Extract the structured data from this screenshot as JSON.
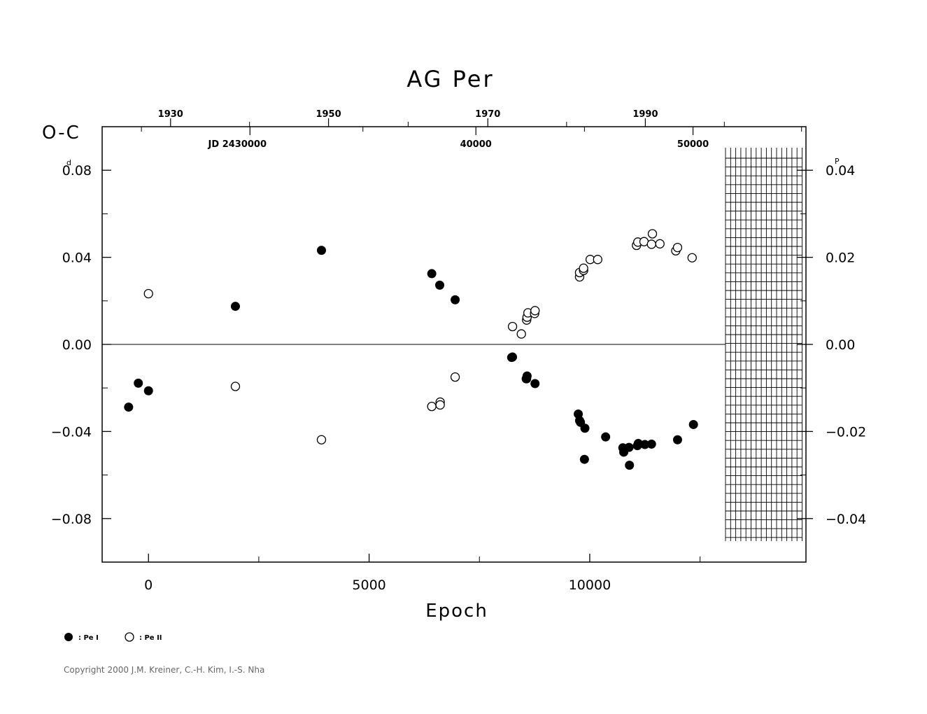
{
  "chart_data": {
    "type": "scatter",
    "title": "AG Per",
    "xlabel": "Epoch",
    "ylabel": "O-C",
    "ylabel_unit": "d",
    "right_axis_unit": "P",
    "xlim": [
      -1050,
      14900
    ],
    "ylim": [
      -0.1,
      0.1
    ],
    "x_ticks": [
      "0",
      "5000",
      "10000"
    ],
    "y_ticks": [
      "0.08",
      "0.04",
      "0.00",
      "−0.04",
      "−0.08"
    ],
    "y_tick_values": [
      0.08,
      0.04,
      0.0,
      -0.04,
      -0.08
    ],
    "right_ticks": [
      "0.04",
      "0.02",
      "0.00",
      "−0.02",
      "−0.04"
    ],
    "right_tick_values": [
      0.04,
      0.02,
      0.0,
      -0.02,
      -0.04
    ],
    "top_year_ticks": [
      "1930",
      "1950",
      "1970",
      "1990"
    ],
    "top_year_epochs": [
      500,
      4080,
      7690,
      11260
    ],
    "top_jd_ticks": [
      "JD 2430000",
      "40000",
      "50000"
    ],
    "top_jd_epochs": [
      2300,
      7420,
      12340
    ],
    "grid": false,
    "zero_line": true,
    "series": [
      {
        "name": "Pe I",
        "marker": "filled-circle",
        "x": [
          -450,
          -230,
          0,
          1970,
          3920,
          6420,
          6600,
          6950,
          8230,
          8250,
          8580,
          8560,
          8570,
          8760,
          9740,
          9790,
          9770,
          9890,
          9880,
          10360,
          10750,
          10770,
          10890,
          10900,
          11080,
          11100,
          11250,
          11400,
          11990,
          12350
        ],
        "y": [
          -0.0288,
          -0.0178,
          -0.0213,
          0.0175,
          0.0432,
          0.0325,
          0.0272,
          0.0205,
          -0.006,
          -0.0058,
          -0.0145,
          -0.0158,
          -0.0158,
          -0.018,
          -0.032,
          -0.0358,
          -0.035,
          -0.0385,
          -0.0528,
          -0.0425,
          -0.0475,
          -0.0495,
          -0.0473,
          -0.0555,
          -0.0465,
          -0.0455,
          -0.046,
          -0.0458,
          -0.0438,
          -0.0368
        ]
      },
      {
        "name": "Pe II",
        "marker": "open-circle",
        "x": [
          0,
          1970,
          3920,
          6420,
          6610,
          6610,
          6950,
          8250,
          8450,
          8570,
          8580,
          8600,
          8750,
          8760,
          9770,
          9770,
          9860,
          9860,
          10010,
          10180,
          11060,
          11090,
          11230,
          11400,
          11420,
          11590,
          11950,
          11990,
          12320
        ],
        "y": [
          0.0233,
          -0.0193,
          -0.0438,
          -0.0285,
          -0.0265,
          -0.0278,
          -0.015,
          0.0082,
          0.0048,
          0.0112,
          0.0125,
          0.0145,
          0.0142,
          0.0155,
          0.031,
          0.033,
          0.034,
          0.035,
          0.039,
          0.039,
          0.0455,
          0.047,
          0.0472,
          0.046,
          0.0508,
          0.0462,
          0.043,
          0.0445,
          0.0398
        ]
      }
    ]
  },
  "legend": {
    "items": [
      {
        "label": ": Pe I",
        "marker": "filled-circle"
      },
      {
        "label": ": Pe II",
        "marker": "open-circle"
      }
    ]
  },
  "footer": {
    "copyright": "Copyright 2000 J.M. Kreiner, C.-H. Kim, I.-S. Nha"
  }
}
